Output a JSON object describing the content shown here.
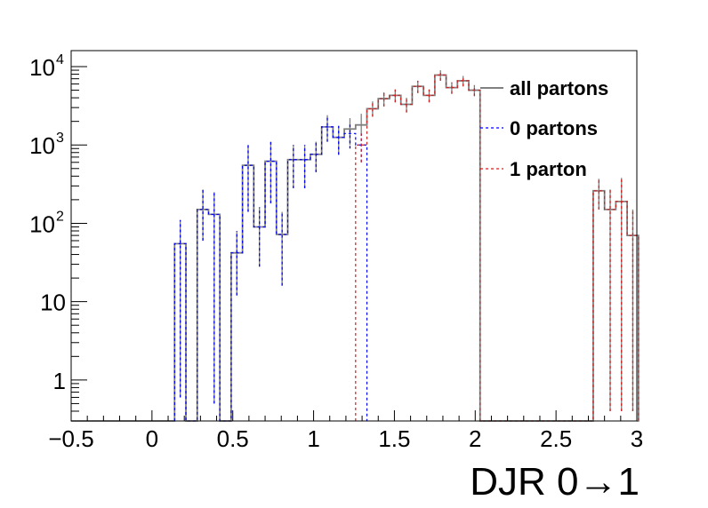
{
  "chart_data": {
    "type": "line",
    "xlabel": "DJR 0→1",
    "ylabel": "",
    "log_y": true,
    "xlim": [
      -0.5,
      3.0
    ],
    "ylim": [
      0.3,
      16000
    ],
    "bin_width": 0.07,
    "x_ticks": [
      {
        "value": -0.5,
        "label": "−0.5"
      },
      {
        "value": 0.0,
        "label": "0"
      },
      {
        "value": 0.5,
        "label": "0.5"
      },
      {
        "value": 1.0,
        "label": "1"
      },
      {
        "value": 1.5,
        "label": "1.5"
      },
      {
        "value": 2.0,
        "label": "2"
      },
      {
        "value": 2.5,
        "label": "2.5"
      },
      {
        "value": 3.0,
        "label": "3"
      }
    ],
    "y_ticks": [
      {
        "value": 1,
        "label": "1"
      },
      {
        "value": 10,
        "label": "10"
      },
      {
        "value": 100,
        "label": "10",
        "exp": "2"
      },
      {
        "value": 1000,
        "label": "10",
        "exp": "3"
      },
      {
        "value": 10000,
        "label": "10",
        "exp": "4"
      }
    ],
    "legend": {
      "position": "top-right",
      "entries": [
        "all partons",
        "0 partons",
        "1 parton"
      ]
    },
    "series": [
      {
        "name": "all partons",
        "color": "#808080",
        "style": "solid",
        "points": [
          {
            "x": 0.175,
            "y": 55,
            "lo": 0.6,
            "hi": 110
          },
          {
            "x": 0.315,
            "y": 150,
            "lo": 60,
            "hi": 270
          },
          {
            "x": 0.385,
            "y": 130,
            "lo": 0.5,
            "hi": 250
          },
          {
            "x": 0.525,
            "y": 42,
            "lo": 12,
            "hi": 80
          },
          {
            "x": 0.595,
            "y": 550,
            "lo": 140,
            "hi": 1000
          },
          {
            "x": 0.665,
            "y": 90,
            "lo": 28,
            "hi": 160
          },
          {
            "x": 0.735,
            "y": 620,
            "lo": 180,
            "hi": 1100
          },
          {
            "x": 0.805,
            "y": 72,
            "lo": 16,
            "hi": 140
          },
          {
            "x": 0.875,
            "y": 650,
            "lo": 280,
            "hi": 1000
          },
          {
            "x": 0.945,
            "y": 650,
            "lo": 280,
            "hi": 1000
          },
          {
            "x": 1.015,
            "y": 760,
            "lo": 450,
            "hi": 1100
          },
          {
            "x": 1.085,
            "y": 1700,
            "lo": 1100,
            "hi": 2400
          },
          {
            "x": 1.155,
            "y": 1250,
            "lo": 750,
            "hi": 1750
          },
          {
            "x": 1.225,
            "y": 1600,
            "lo": 1000,
            "hi": 2200
          },
          {
            "x": 1.295,
            "y": 1800,
            "lo": 1300,
            "hi": 2500
          },
          {
            "x": 1.365,
            "y": 2900,
            "lo": 2300,
            "hi": 3600
          },
          {
            "x": 1.435,
            "y": 3900,
            "lo": 3100,
            "hi": 4700
          },
          {
            "x": 1.505,
            "y": 4300,
            "lo": 3500,
            "hi": 5100
          },
          {
            "x": 1.575,
            "y": 3300,
            "lo": 2600,
            "hi": 4000
          },
          {
            "x": 1.645,
            "y": 5600,
            "lo": 4600,
            "hi": 6600
          },
          {
            "x": 1.715,
            "y": 4300,
            "lo": 3500,
            "hi": 5100
          },
          {
            "x": 1.785,
            "y": 7800,
            "lo": 6600,
            "hi": 9000
          },
          {
            "x": 1.855,
            "y": 5400,
            "lo": 4500,
            "hi": 6300
          },
          {
            "x": 1.925,
            "y": 6600,
            "lo": 5600,
            "hi": 7600
          },
          {
            "x": 1.995,
            "y": 5000,
            "lo": 4200,
            "hi": 5800
          },
          {
            "x": 2.765,
            "y": 260,
            "lo": 150,
            "hi": 370
          },
          {
            "x": 2.835,
            "y": 150,
            "lo": 0.4,
            "hi": 270
          },
          {
            "x": 2.905,
            "y": 190,
            "lo": 0.4,
            "hi": 380
          },
          {
            "x": 2.975,
            "y": 70,
            "lo": 0.4,
            "hi": 150
          }
        ]
      },
      {
        "name": "0 partons",
        "color": "#0000ff",
        "style": "dashed",
        "points": [
          {
            "x": 0.175,
            "y": 55,
            "lo": 0.6,
            "hi": 110
          },
          {
            "x": 0.315,
            "y": 150,
            "lo": 60,
            "hi": 270
          },
          {
            "x": 0.385,
            "y": 130,
            "lo": 0.5,
            "hi": 250
          },
          {
            "x": 0.525,
            "y": 42,
            "lo": 12,
            "hi": 80
          },
          {
            "x": 0.595,
            "y": 550,
            "lo": 140,
            "hi": 1000
          },
          {
            "x": 0.665,
            "y": 90,
            "lo": 28,
            "hi": 160
          },
          {
            "x": 0.735,
            "y": 620,
            "lo": 180,
            "hi": 1100
          },
          {
            "x": 0.805,
            "y": 72,
            "lo": 16,
            "hi": 140
          },
          {
            "x": 0.875,
            "y": 650,
            "lo": 280,
            "hi": 1000
          },
          {
            "x": 0.945,
            "y": 650,
            "lo": 280,
            "hi": 1000
          },
          {
            "x": 1.015,
            "y": 760,
            "lo": 450,
            "hi": 1100
          },
          {
            "x": 1.085,
            "y": 1700,
            "lo": 1100,
            "hi": 2400
          },
          {
            "x": 1.155,
            "y": 1250,
            "lo": 750,
            "hi": 1750
          },
          {
            "x": 1.225,
            "y": 1400,
            "lo": 900,
            "hi": 1900
          },
          {
            "x": 1.295,
            "y": 1000,
            "lo": 600,
            "hi": 1400
          }
        ]
      },
      {
        "name": "1 parton",
        "color": "#cc2222",
        "style": "dashed",
        "points": [
          {
            "x": 1.295,
            "y": 1000,
            "lo": 600,
            "hi": 1400
          },
          {
            "x": 1.365,
            "y": 2900,
            "lo": 2300,
            "hi": 3600
          },
          {
            "x": 1.435,
            "y": 3900,
            "lo": 3100,
            "hi": 4700
          },
          {
            "x": 1.505,
            "y": 4300,
            "lo": 3500,
            "hi": 5100
          },
          {
            "x": 1.575,
            "y": 3300,
            "lo": 2600,
            "hi": 4000
          },
          {
            "x": 1.645,
            "y": 5600,
            "lo": 4600,
            "hi": 6600
          },
          {
            "x": 1.715,
            "y": 4300,
            "lo": 3500,
            "hi": 5100
          },
          {
            "x": 1.785,
            "y": 7800,
            "lo": 6600,
            "hi": 9000
          },
          {
            "x": 1.855,
            "y": 5400,
            "lo": 4500,
            "hi": 6300
          },
          {
            "x": 1.925,
            "y": 6600,
            "lo": 5600,
            "hi": 7600
          },
          {
            "x": 1.995,
            "y": 5000,
            "lo": 4200,
            "hi": 5800
          },
          {
            "x": 2.765,
            "y": 260,
            "lo": 150,
            "hi": 370
          },
          {
            "x": 2.835,
            "y": 150,
            "lo": 0.4,
            "hi": 270
          },
          {
            "x": 2.905,
            "y": 190,
            "lo": 0.4,
            "hi": 380
          },
          {
            "x": 2.975,
            "y": 70,
            "lo": 0.4,
            "hi": 150
          }
        ]
      }
    ]
  }
}
